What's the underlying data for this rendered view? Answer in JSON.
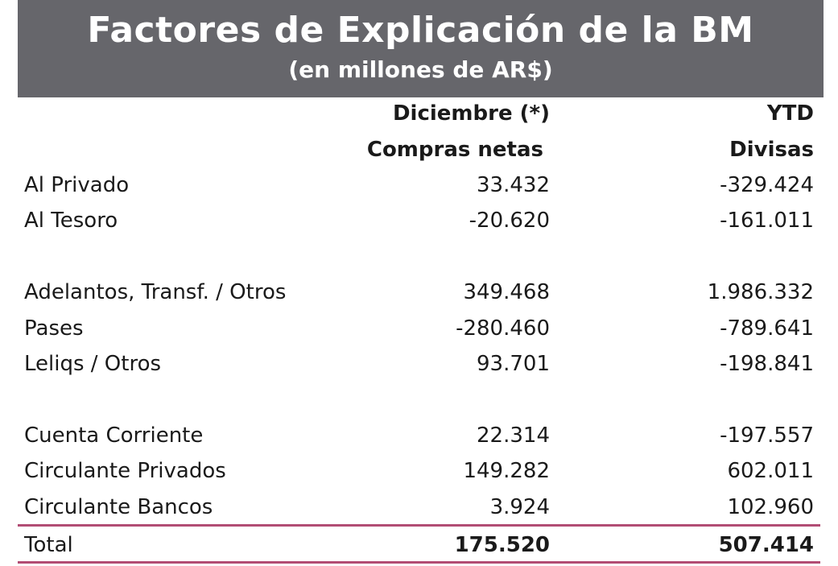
{
  "header": {
    "title": "Factores de Explicación de la BM",
    "subtitle": "(en millones de AR$)",
    "background_color": "#66666b"
  },
  "table": {
    "columns": [
      {
        "line1": "Diciembre (*)",
        "line2": "Compras netas"
      },
      {
        "line1": "YTD",
        "line2": "Divisas"
      }
    ],
    "rows": [
      {
        "label": "Al Privado",
        "dic": "33.432",
        "ytd": "-329.424"
      },
      {
        "label": "Al Tesoro",
        "dic": "-20.620",
        "ytd": "-161.011"
      },
      {
        "label": "Adelantos, Transf. / Otros",
        "dic": "349.468",
        "ytd": "1.986.332"
      },
      {
        "label": "Pases",
        "dic": "-280.460",
        "ytd": "-789.641"
      },
      {
        "label": "Leliqs / Otros",
        "dic": "93.701",
        "ytd": "-198.841"
      },
      {
        "label": "Cuenta Corriente",
        "dic": "22.314",
        "ytd": "-197.557"
      },
      {
        "label": "Circulante Privados",
        "dic": "149.282",
        "ytd": "602.011"
      },
      {
        "label": "Circulante Bancos",
        "dic": "3.924",
        "ytd": "102.960"
      }
    ],
    "total": {
      "label": "Total",
      "dic": "175.520",
      "ytd": "507.414"
    },
    "rule_color": "#b24d74"
  }
}
